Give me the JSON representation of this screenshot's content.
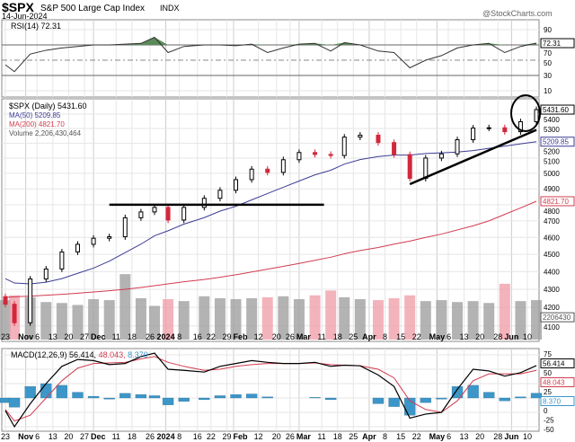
{
  "header": {
    "symbol": "$SPX",
    "name": "S&P 500 Large Cap Index",
    "exchange": "INDX",
    "date": "14-Jun-2024",
    "watermark": "@StockCharts.com"
  },
  "chart_data": [
    {
      "type": "line",
      "panel": "rsi",
      "legend": "RSI(14) 72.31",
      "last_label": "72.31",
      "ylim": [
        0,
        100
      ],
      "ticks": [
        90,
        70,
        50,
        30,
        10
      ],
      "dates": [
        "2023-10-23",
        "2023-10-27",
        "2023-11-03",
        "2023-11-10",
        "2023-11-17",
        "2023-11-24",
        "2023-12-01",
        "2023-12-08",
        "2023-12-15",
        "2023-12-22",
        "2023-12-28",
        "2024-01-03",
        "2024-01-10",
        "2024-01-19",
        "2024-01-26",
        "2024-02-02",
        "2024-02-09",
        "2024-02-16",
        "2024-02-23",
        "2024-03-01",
        "2024-03-08",
        "2024-03-15",
        "2024-03-21",
        "2024-03-28",
        "2024-04-05",
        "2024-04-12",
        "2024-04-19",
        "2024-04-26",
        "2024-05-03",
        "2024-05-10",
        "2024-05-17",
        "2024-05-24",
        "2024-05-31",
        "2024-06-07",
        "2024-06-14"
      ],
      "values": [
        44,
        35,
        58,
        63,
        66,
        68,
        70,
        70,
        71,
        72,
        80,
        60,
        68,
        70,
        70,
        69,
        71,
        60,
        66,
        71,
        72,
        62,
        73,
        70,
        62,
        60,
        40,
        50,
        56,
        66,
        70,
        72,
        60,
        68,
        72.31
      ]
    },
    {
      "type": "candlestick",
      "panel": "price",
      "legend": "$SPX (Daily) 5431.60",
      "last_label": "5431.60",
      "scale": "log",
      "ticks": [
        5400,
        5300,
        5200,
        5100,
        5000,
        4900,
        4800,
        4700,
        4600,
        4500,
        4400,
        4300,
        4200,
        4100
      ],
      "dates": [
        "2023-10-23",
        "2023-10-27",
        "2023-11-03",
        "2023-11-10",
        "2023-11-17",
        "2023-11-24",
        "2023-12-01",
        "2023-12-08",
        "2023-12-15",
        "2023-12-22",
        "2023-12-28",
        "2024-01-03",
        "2024-01-10",
        "2024-01-19",
        "2024-01-26",
        "2024-02-02",
        "2024-02-09",
        "2024-02-16",
        "2024-02-23",
        "2024-03-01",
        "2024-03-08",
        "2024-03-15",
        "2024-03-21",
        "2024-03-28",
        "2024-04-05",
        "2024-04-12",
        "2024-04-19",
        "2024-04-26",
        "2024-05-03",
        "2024-05-10",
        "2024-05-17",
        "2024-05-24",
        "2024-05-31",
        "2024-06-07",
        "2024-06-14"
      ],
      "close": [
        4217,
        4117,
        4358,
        4415,
        4514,
        4559,
        4595,
        4604,
        4719,
        4755,
        4783,
        4705,
        4783,
        4840,
        4891,
        4959,
        5027,
        5006,
        5089,
        5137,
        5124,
        5117,
        5241,
        5254,
        5204,
        5123,
        4967,
        5100,
        5128,
        5223,
        5303,
        5305,
        5278,
        5347,
        5431.6
      ],
      "series": [
        {
          "name": "MA(50)",
          "legend": "MA(50) 5209.85",
          "last_label": "5209.85",
          "color": "#3c3c96",
          "values": [
            4360,
            4335,
            4330,
            4340,
            4360,
            4390,
            4420,
            4460,
            4510,
            4560,
            4610,
            4640,
            4680,
            4720,
            4760,
            4790,
            4830,
            4870,
            4910,
            4950,
            4990,
            5020,
            5060,
            5090,
            5110,
            5120,
            5120,
            5130,
            5135,
            5140,
            5150,
            5165,
            5180,
            5195,
            5209.85
          ]
        },
        {
          "name": "MA(200)",
          "legend": "MA(200) 4821.70",
          "last_label": "4821.70",
          "color": "#d23c50",
          "values": [
            4255,
            4258,
            4262,
            4267,
            4272,
            4278,
            4285,
            4292,
            4300,
            4310,
            4320,
            4330,
            4342,
            4355,
            4368,
            4382,
            4398,
            4414,
            4430,
            4447,
            4465,
            4483,
            4503,
            4522,
            4540,
            4560,
            4578,
            4600,
            4620,
            4645,
            4670,
            4700,
            4740,
            4780,
            4821.7
          ]
        }
      ]
    },
    {
      "type": "bar",
      "panel": "volume",
      "legend": "Volume 2,206,430,464",
      "last_label": "2206430",
      "values": [
        4.1,
        4.6,
        4.4,
        3.9,
        3.8,
        3.6,
        4.2,
        4.1,
        6.8,
        4.3,
        3.5,
        4.2,
        4.0,
        4.5,
        4.3,
        4.2,
        4.3,
        4.4,
        4.5,
        4.2,
        4.6,
        5.1,
        4.4,
        4.2,
        4.1,
        4.3,
        4.6,
        4.0,
        4.1,
        3.9,
        4.0,
        3.8,
        5.8,
        4.0,
        4.1
      ]
    },
    {
      "type": "line",
      "panel": "macd",
      "legend_macd": "MACD(12,26,9) 56.414,",
      "legend_signal": "48.043,",
      "legend_hist": "8.370",
      "labels": [
        "56.414",
        "48.043",
        "8.370"
      ],
      "ticks": [
        75,
        50,
        25,
        0,
        -25,
        -50
      ],
      "macd": [
        -22,
        -50,
        -10,
        25,
        55,
        67,
        65,
        58,
        60,
        72,
        78,
        50,
        48,
        45,
        55,
        60,
        65,
        62,
        60,
        60,
        62,
        55,
        57,
        56,
        40,
        20,
        -35,
        -28,
        -25,
        15,
        50,
        47,
        38,
        44,
        56.414
      ],
      "signal": [
        -20,
        -40,
        -30,
        0,
        30,
        52,
        60,
        61,
        62,
        68,
        72,
        62,
        55,
        48,
        50,
        55,
        58,
        60,
        60,
        60,
        61,
        58,
        57,
        56,
        50,
        35,
        -5,
        -20,
        -25,
        -5,
        30,
        42,
        42,
        42,
        48.043
      ],
      "hist": [
        -8,
        -16,
        20,
        25,
        22,
        10,
        3,
        -2,
        8,
        6,
        4,
        -12,
        -6,
        -3,
        4,
        6,
        7,
        2,
        0,
        0,
        1,
        -3,
        0,
        0,
        -10,
        -15,
        -30,
        -8,
        -2,
        20,
        22,
        10,
        -5,
        2,
        8.37
      ]
    }
  ],
  "x_ticks": [
    {
      "label": "23",
      "date": "2023-10-23",
      "bold": false
    },
    {
      "label": "Nov",
      "date": "2023-11-01",
      "bold": true
    },
    {
      "label": "6",
      "date": "2023-11-06",
      "bold": false
    },
    {
      "label": "13",
      "date": "2023-11-13",
      "bold": false
    },
    {
      "label": "20",
      "date": "2023-11-20",
      "bold": false
    },
    {
      "label": "27",
      "date": "2023-11-27",
      "bold": false
    },
    {
      "label": "Dec",
      "date": "2023-12-01",
      "bold": true
    },
    {
      "label": "11",
      "date": "2023-12-11",
      "bold": false
    },
    {
      "label": "18",
      "date": "2023-12-18",
      "bold": false
    },
    {
      "label": "26",
      "date": "2023-12-26",
      "bold": false
    },
    {
      "label": "2024",
      "date": "2024-01-02",
      "bold": true
    },
    {
      "label": "8",
      "date": "2024-01-08",
      "bold": false
    },
    {
      "label": "16",
      "date": "2024-01-16",
      "bold": false
    },
    {
      "label": "22",
      "date": "2024-01-22",
      "bold": false
    },
    {
      "label": "29",
      "date": "2024-01-29",
      "bold": false
    },
    {
      "label": "Feb",
      "date": "2024-02-01",
      "bold": true
    },
    {
      "label": "12",
      "date": "2024-02-12",
      "bold": false
    },
    {
      "label": "20",
      "date": "2024-02-20",
      "bold": false
    },
    {
      "label": "26",
      "date": "2024-02-26",
      "bold": false
    },
    {
      "label": "Mar",
      "date": "2024-03-01",
      "bold": true
    },
    {
      "label": "11",
      "date": "2024-03-11",
      "bold": false
    },
    {
      "label": "18",
      "date": "2024-03-18",
      "bold": false
    },
    {
      "label": "25",
      "date": "2024-03-25",
      "bold": false
    },
    {
      "label": "Apr",
      "date": "2024-04-01",
      "bold": true
    },
    {
      "label": "8",
      "date": "2024-04-08",
      "bold": false
    },
    {
      "label": "15",
      "date": "2024-04-15",
      "bold": false
    },
    {
      "label": "22",
      "date": "2024-04-22",
      "bold": false
    },
    {
      "label": "May",
      "date": "2024-05-01",
      "bold": true
    },
    {
      "label": "6",
      "date": "2024-05-06",
      "bold": false
    },
    {
      "label": "13",
      "date": "2024-05-13",
      "bold": false
    },
    {
      "label": "20",
      "date": "2024-05-20",
      "bold": false
    },
    {
      "label": "28",
      "date": "2024-05-28",
      "bold": false
    },
    {
      "label": "Jun",
      "date": "2024-06-03",
      "bold": true
    },
    {
      "label": "10",
      "date": "2024-06-10",
      "bold": false
    }
  ],
  "annotations": {
    "support_level": 4800,
    "support_from": "2023-12-08",
    "support_to": "2024-03-12",
    "trend_from": {
      "date": "2024-04-19",
      "value": 4930
    },
    "trend_to": {
      "date": "2024-06-14",
      "value": 5290
    }
  },
  "colors": {
    "up": "#000000",
    "down": "#d2283c",
    "rsi_fill": "#5a8a5a",
    "hist": "#3c96c8",
    "vol_up": "#a0a0a0",
    "vol_down": "#f0a0aa"
  }
}
